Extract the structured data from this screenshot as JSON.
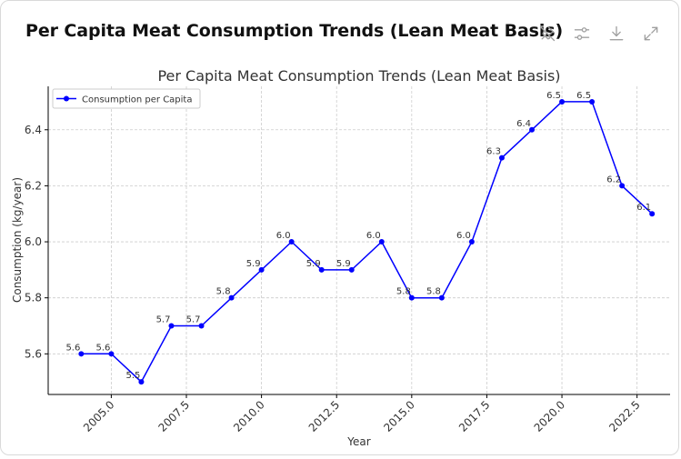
{
  "header": {
    "title": "Per Capita Meat Consumption Trends (Lean Meat Basis)",
    "toolbar": [
      {
        "name": "pin-off-icon"
      },
      {
        "name": "sliders-icon"
      },
      {
        "name": "download-icon"
      },
      {
        "name": "expand-icon"
      }
    ]
  },
  "colors": {
    "line": "#0000ff",
    "grid": "#cccccc",
    "text": "#333333"
  },
  "chart_data": {
    "type": "line",
    "title": "Per Capita Meat Consumption Trends (Lean Meat Basis)",
    "xlabel": "Year",
    "ylabel": "Consumption (kg/year)",
    "xlim": [
      2002.9,
      2023.6
    ],
    "ylim": [
      5.455,
      6.555
    ],
    "xticks": [
      2005.0,
      2007.5,
      2010.0,
      2012.5,
      2015.0,
      2017.5,
      2020.0,
      2022.5
    ],
    "xtick_labels": [
      "2005.0",
      "2007.5",
      "2010.0",
      "2012.5",
      "2015.0",
      "2017.5",
      "2020.0",
      "2022.5"
    ],
    "yticks": [
      5.6,
      5.8,
      6.0,
      6.2,
      6.4
    ],
    "ytick_labels": [
      "5.6",
      "5.8",
      "6.0",
      "6.2",
      "6.4"
    ],
    "grid": true,
    "legend": {
      "position": "top-left",
      "entries": [
        "Consumption per Capita"
      ]
    },
    "series": [
      {
        "name": "Consumption per Capita",
        "x": [
          2004,
          2005,
          2006,
          2007,
          2008,
          2009,
          2010,
          2011,
          2012,
          2013,
          2014,
          2015,
          2016,
          2017,
          2018,
          2019,
          2020,
          2021,
          2022,
          2023
        ],
        "values": [
          5.6,
          5.6,
          5.5,
          5.7,
          5.7,
          5.8,
          5.9,
          6.0,
          5.9,
          5.9,
          6.0,
          5.8,
          5.8,
          6.0,
          6.3,
          6.4,
          6.5,
          6.5,
          6.2,
          6.1
        ],
        "labels": [
          "5.6",
          "5.6",
          "5.5",
          "5.7",
          "5.7",
          "5.8",
          "5.9",
          "6.0",
          "5.9",
          "5.9",
          "6.0",
          "5.8",
          "5.8",
          "6.0",
          "6.3",
          "6.4",
          "6.5",
          "6.5",
          "6.2",
          "6.1"
        ]
      }
    ]
  }
}
